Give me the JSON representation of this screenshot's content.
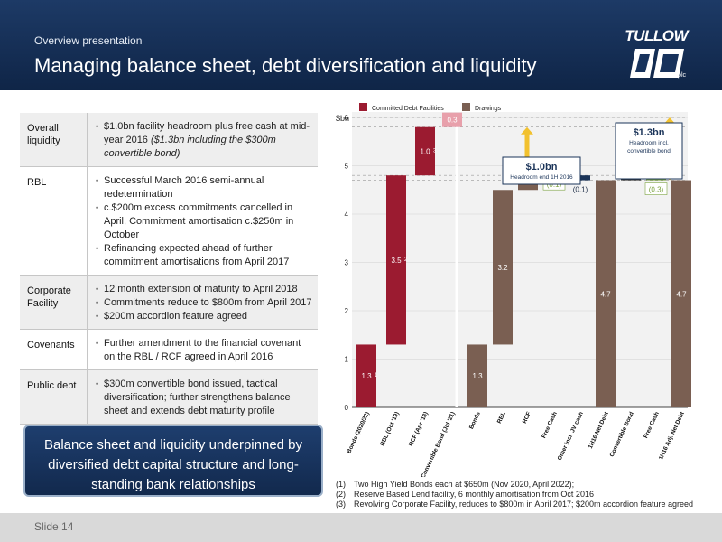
{
  "header": {
    "subtitle": "Overview presentation",
    "title": "Managing balance sheet, debt diversification and liquidity"
  },
  "logo": {
    "name": "TULLOW",
    "suffix": "plc"
  },
  "table": {
    "rows": [
      {
        "label": "Overall liquidity",
        "items": [
          "$1.0bn facility headroom plus free cash at mid-year 2016"
        ],
        "note": "($1.3bn including the $300m convertible bond)"
      },
      {
        "label": "RBL",
        "items": [
          "Successful March 2016 semi-annual redetermination",
          "c.$200m excess commitments cancelled in April, Commitment amortisation c.$250m in October",
          "Refinancing expected ahead of further commitment amortisations from April 2017"
        ]
      },
      {
        "label": "Corporate Facility",
        "items": [
          "12 month extension of maturity to April 2018",
          "Commitments reduce to $800m from April 2017",
          "$200m accordion feature agreed"
        ]
      },
      {
        "label": "Covenants",
        "items": [
          "Further amendment to the financial covenant on the RBL / RCF agreed in April 2016"
        ]
      },
      {
        "label": "Public debt",
        "items": [
          "$300m convertible bond issued, tactical diversification; further strengthens balance sheet and extends debt maturity profile"
        ]
      }
    ]
  },
  "callout": {
    "text": "Balance sheet and liquidity underpinned by diversified debt capital structure and long-standing bank relationships"
  },
  "footnotes": [
    "(1) Two High Yield Bonds each at $650m (Nov 2020, April 2022);",
    "(2) Reserve Based Lend facility, 6 monthly amortisation from Oct 2016",
    "(3) Revolving Corporate Facility, reduces to $800m in April 2017; $200m accordion feature agreed"
  ],
  "footer": {
    "slide": "Slide 14"
  },
  "chart_data": {
    "type": "bar",
    "ylabel": "$bn",
    "ylim": [
      0,
      6
    ],
    "yticks": [
      0,
      1,
      2,
      3,
      4,
      5,
      6
    ],
    "legend": [
      {
        "name": "Committed Debt Facilities",
        "color": "#9b1b30"
      },
      {
        "name": "Drawings",
        "color": "#7a5f52"
      }
    ],
    "colors": {
      "facilities": "#9b1b30",
      "drawings": "#7a5f52",
      "positive": "#2f2f2f",
      "negative_green": "#7ba23f",
      "negative_navy": "#1b3459",
      "convertible": "#e8a0ab",
      "arrow": "#f2c12e"
    },
    "bars": [
      {
        "category": "Bonds (2020/22)",
        "base": 0,
        "value": 1.3,
        "label": "1.3",
        "footnote": "1",
        "kind": "facilities"
      },
      {
        "category": "RBL (Oct '19)",
        "base": 1.3,
        "value": 3.5,
        "label": "3.5",
        "footnote": "2",
        "kind": "facilities"
      },
      {
        "category": "RCF (Apr '18)",
        "base": 4.8,
        "value": 1.0,
        "label": "1.0",
        "footnote": "3",
        "kind": "facilities"
      },
      {
        "category": "Convertible Bond (Jul '21)",
        "base": 5.8,
        "value": 0.3,
        "label": "0.3",
        "kind": "convertible"
      },
      {
        "category": "Bonds",
        "base": 0,
        "value": 1.3,
        "label": "1.3",
        "kind": "drawings"
      },
      {
        "category": "RBL",
        "base": 1.3,
        "value": 3.2,
        "label": "3.2",
        "kind": "drawings"
      },
      {
        "category": "RCF",
        "base": 4.5,
        "value": 0.4,
        "label": "0.4",
        "kind": "drawings"
      },
      {
        "category": "Free Cash",
        "base": 4.8,
        "value": 0.1,
        "label": "(0.1)",
        "kind": "negative_green"
      },
      {
        "category": "Other incl. JV cash",
        "base": 4.7,
        "value": 0.1,
        "label": "(0.1)",
        "kind": "negative_navy"
      },
      {
        "category": "1H16 Net Debt",
        "base": 0,
        "value": 4.7,
        "label": "4.7",
        "kind": "drawings"
      },
      {
        "category": "Convertible Bond",
        "base": 4.7,
        "value": 0.3,
        "label": "0.3",
        "kind": "positive"
      },
      {
        "category": "Free Cash",
        "base": 4.7,
        "value": 0.3,
        "label": "(0.3)",
        "kind": "negative_green"
      },
      {
        "category": "1H16 Adj. Net Debt",
        "base": 0,
        "value": 4.7,
        "label": "4.7",
        "kind": "drawings"
      }
    ],
    "annotations": [
      {
        "title": "$1.0bn",
        "subtitle": "Headroom end 1H 2016",
        "from": 4.8,
        "to": 5.8
      },
      {
        "title": "$1.3bn",
        "subtitle": "Headroom incl. convertible bond",
        "from": 4.7,
        "to": 6.0
      }
    ]
  }
}
